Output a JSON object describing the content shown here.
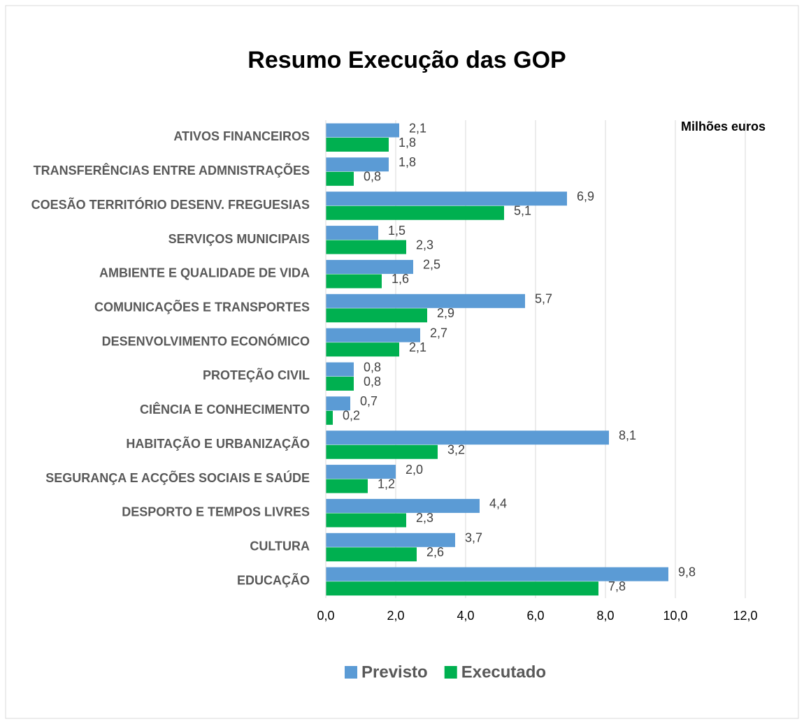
{
  "chart_data": {
    "type": "barh",
    "title": "Resumo Execução das GOP",
    "annotation": "Milhões euros",
    "categories": [
      "ATIVOS FINANCEIROS",
      "TRANSFERÊNCIAS ENTRE ADMNISTRAÇÕES",
      "COESÃO TERRITÓRIO DESENV. FREGUESIAS",
      "SERVIÇOS MUNICIPAIS",
      "AMBIENTE E QUALIDADE DE VIDA",
      "COMUNICAÇÕES E TRANSPORTES",
      "DESENVOLVIMENTO ECONÓMICO",
      "PROTEÇÃO CIVIL",
      "CIÊNCIA E CONHECIMENTO",
      "HABITAÇÃO E URBANIZAÇÃO",
      "SEGURANÇA E ACÇÕES SOCIAIS E SAÚDE",
      "DESPORTO E TEMPOS LIVRES",
      "CULTURA",
      "EDUCAÇÃO"
    ],
    "series": [
      {
        "name": "Previsto",
        "color": "#5b9bd5",
        "values": [
          2.1,
          1.8,
          6.9,
          1.5,
          2.5,
          5.7,
          2.7,
          0.8,
          0.7,
          8.1,
          2.0,
          4.4,
          3.7,
          9.8
        ],
        "value_labels": [
          "2,1",
          "1,8",
          "6,9",
          "1,5",
          "2,5",
          "5,7",
          "2,7",
          "0,8",
          "0,7",
          "8,1",
          "2,0",
          "4,4",
          "3,7",
          "9,8"
        ]
      },
      {
        "name": "Executado",
        "color": "#00b050",
        "values": [
          1.8,
          0.8,
          5.1,
          2.3,
          1.6,
          2.9,
          2.1,
          0.8,
          0.2,
          3.2,
          1.2,
          2.3,
          2.6,
          7.8
        ],
        "value_labels": [
          "1,8",
          "0,8",
          "5,1",
          "2,3",
          "1,6",
          "2,9",
          "2,1",
          "0,8",
          "0,2",
          "3,2",
          "1,2",
          "2,3",
          "2,6",
          "7,8"
        ]
      }
    ],
    "xlim": [
      0,
      12
    ],
    "xticks": [
      {
        "value": 0,
        "label": "0,0"
      },
      {
        "value": 2,
        "label": "2,0"
      },
      {
        "value": 4,
        "label": "4,0"
      },
      {
        "value": 6,
        "label": "6,0"
      },
      {
        "value": 8,
        "label": "8,0"
      },
      {
        "value": 10,
        "label": "10,0"
      },
      {
        "value": 12,
        "label": "12,0"
      }
    ],
    "grid": true,
    "legend": "bottom"
  }
}
